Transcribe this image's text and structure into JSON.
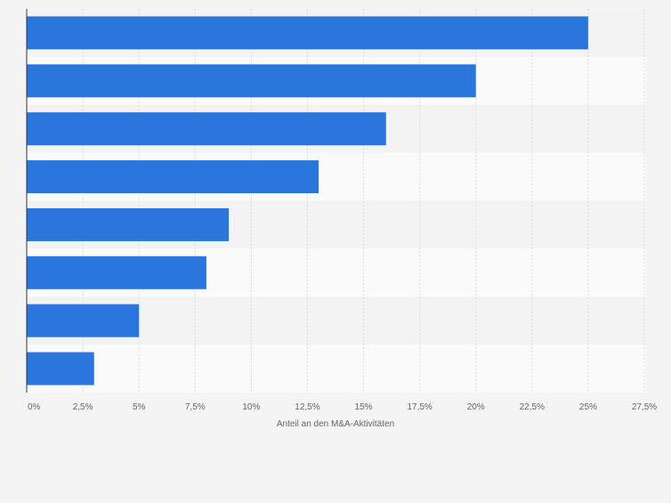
{
  "chart_data": {
    "type": "bar",
    "orientation": "horizontal",
    "title": "",
    "xlabel": "Anteil an den M&A-Aktivitäten",
    "ylabel": "",
    "categories": [
      "",
      "",
      "",
      "",
      "",
      "",
      "",
      ""
    ],
    "values": [
      25,
      20,
      16,
      13,
      9,
      8,
      5,
      3
    ],
    "xlim": [
      0,
      27.5
    ],
    "ticks": [
      0,
      2.5,
      5,
      7.5,
      10,
      12.5,
      15,
      17.5,
      20,
      22.5,
      25,
      27.5
    ],
    "tick_labels": [
      "0%",
      "2,5%",
      "5%",
      "7,5%",
      "10%",
      "12,5%",
      "15%",
      "17,5%",
      "20%",
      "22,5%",
      "25%",
      "27,5%"
    ],
    "grid": true,
    "bar_color": "#2a76dd"
  }
}
